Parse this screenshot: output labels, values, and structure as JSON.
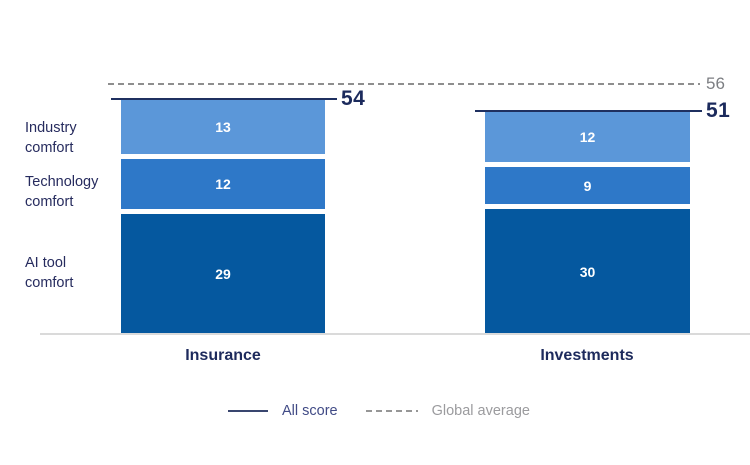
{
  "chart_data": {
    "type": "bar",
    "subtype": "stacked-column",
    "title": "",
    "categories": [
      "Insurance",
      "Investments"
    ],
    "row_labels": {
      "industry": "Industry\ncomfort",
      "technology": "Technology\ncomfort",
      "aitool": "AI tool\ncomfort"
    },
    "series": [
      {
        "name": "Industry comfort",
        "color": "#5b97d9",
        "values": [
          13,
          12
        ]
      },
      {
        "name": "Technology comfort",
        "color": "#2e78c8",
        "values": [
          12,
          9
        ]
      },
      {
        "name": "AI tool comfort",
        "color": "#05589f",
        "values": [
          29,
          30
        ]
      }
    ],
    "totals": [
      54,
      51
    ],
    "global_average": 56,
    "ylim": [
      0,
      60
    ],
    "grid": false,
    "legend_position": "bottom",
    "legend": [
      {
        "label": "All score",
        "style": "solid",
        "color": "#39466f"
      },
      {
        "label": "Global average",
        "style": "dashed",
        "color": "#969696"
      }
    ]
  },
  "colors": {
    "navy_text": "#1d2a5c",
    "score_line": "#1f3060",
    "gray_line": "#8e8e8e",
    "baseline": "#dadada",
    "segment_value_text": "#ffffff"
  }
}
